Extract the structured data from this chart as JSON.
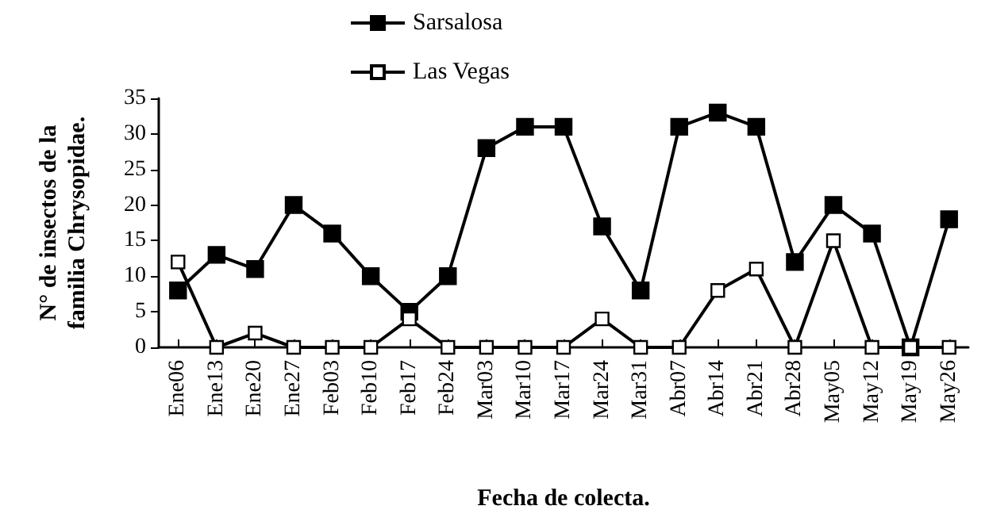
{
  "chart_data": {
    "type": "line",
    "xlabel": "Fecha de colecta.",
    "ylabel": "N° de insectos de la\nfamilia Chrysopidae.",
    "categories": [
      "Ene06",
      "Ene13",
      "Ene20",
      "Ene27",
      "Feb03",
      "Feb10",
      "Feb17",
      "Feb24",
      "Mar03",
      "Mar10",
      "Mar17",
      "Mar24",
      "Mar31",
      "Abr07",
      "Abr14",
      "Abr21",
      "Abr28",
      "May05",
      "May12",
      "May19",
      "May26"
    ],
    "series": [
      {
        "name": "Sarsalosa",
        "color": "#000000",
        "values": [
          8,
          13,
          11,
          20,
          16,
          10,
          5,
          10,
          28,
          31,
          31,
          17,
          8,
          31,
          33,
          31,
          12,
          20,
          16,
          0,
          18
        ]
      },
      {
        "name": "Las Vegas",
        "color": "#ffffff",
        "values": [
          12,
          0,
          2,
          0,
          0,
          0,
          4,
          0,
          0,
          0,
          0,
          4,
          0,
          0,
          8,
          11,
          0,
          15,
          0,
          0,
          0
        ]
      }
    ],
    "ylim": [
      0,
      35
    ],
    "yticks": [
      0,
      5,
      10,
      15,
      20,
      25,
      30,
      35
    ],
    "grid": false,
    "legend": "top",
    "marker": "square",
    "line_style": "solid"
  }
}
